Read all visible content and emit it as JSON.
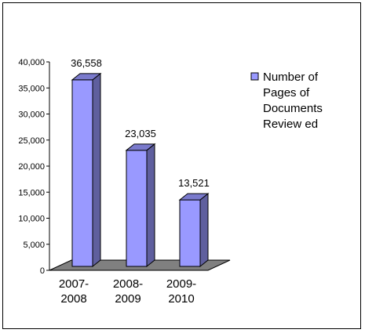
{
  "chart_data": {
    "type": "bar",
    "style": "3d-column",
    "categories": [
      "2007-2008",
      "2008-2009",
      "2009-2010"
    ],
    "category_lines": [
      [
        "2007-",
        "2008"
      ],
      [
        "2008-",
        "2009"
      ],
      [
        "2009-",
        "2010"
      ]
    ],
    "series": [
      {
        "name": "Number of Pages of Documents Review ed",
        "legend_lines": [
          "Number of",
          "Pages of",
          "Documents",
          "Review ed"
        ],
        "values": [
          36558,
          23035,
          13521
        ],
        "data_labels": [
          "36,558",
          "23,035",
          "13,521"
        ],
        "color": "#9999FF"
      }
    ],
    "ylim": [
      0,
      40000
    ],
    "yticks": [
      0,
      5000,
      10000,
      15000,
      20000,
      25000,
      30000,
      35000,
      40000
    ],
    "ytick_labels": [
      "0",
      "5,000",
      "10,000",
      "15,000",
      "20,000",
      "25,000",
      "30,000",
      "35,000",
      "40,000"
    ],
    "floor_color": "#808080",
    "grid": false,
    "legend_position": "right"
  }
}
